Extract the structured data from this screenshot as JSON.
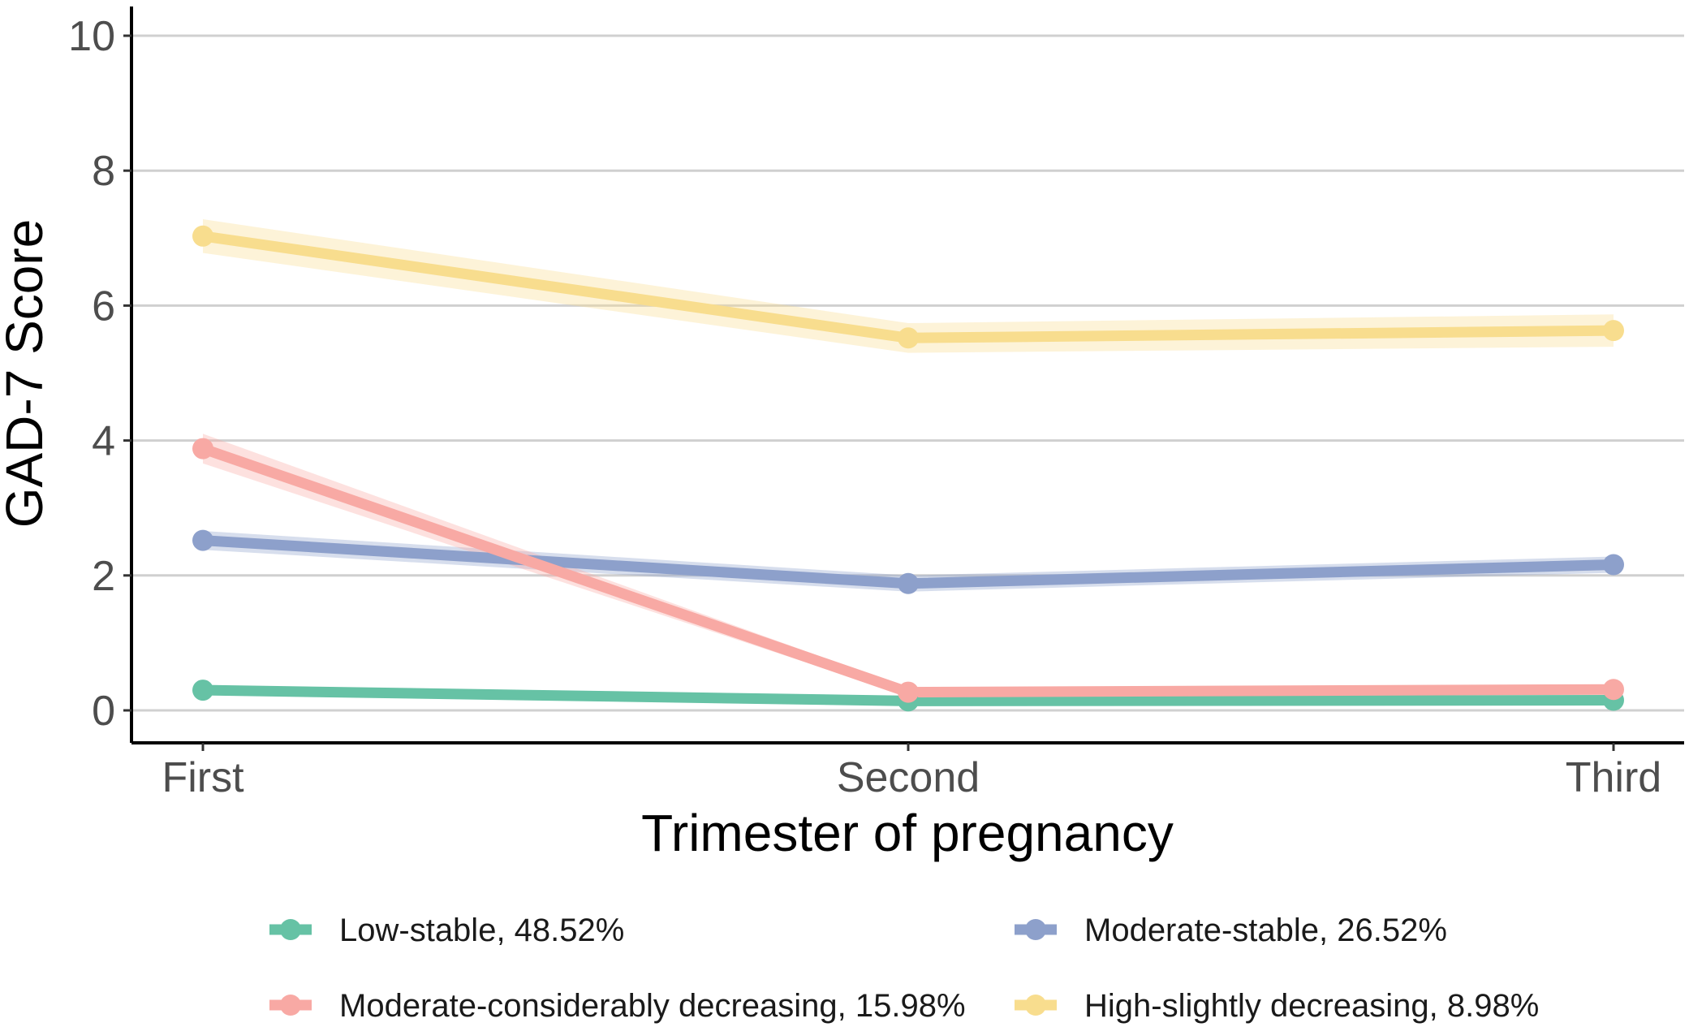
{
  "chart_data": {
    "type": "line",
    "title": "",
    "xlabel": "Trimester of pregnancy",
    "ylabel": "GAD-7 Score",
    "categories": [
      "First",
      "Second",
      "Third"
    ],
    "ylim": [
      -0.5,
      10.5
    ],
    "yticks": [
      0,
      2,
      4,
      6,
      8,
      10
    ],
    "grid": "horizontal major",
    "legend_position": "bottom",
    "series": [
      {
        "name": "Low-stable, 48.52%",
        "color": "#66c2a5",
        "values": [
          0.3,
          0.14,
          0.15
        ],
        "ci": [
          0.05,
          0.04,
          0.04
        ]
      },
      {
        "name": "Moderate-stable, 26.52%",
        "color": "#8da0cb",
        "values": [
          2.52,
          1.88,
          2.16
        ],
        "ci": [
          0.14,
          0.12,
          0.12
        ]
      },
      {
        "name": "Moderate-considerably decreasing, 15.98%",
        "color": "#fc8d62",
        "line_color": "#f8a9a4",
        "values": [
          3.88,
          0.27,
          0.31
        ],
        "ci": [
          0.22,
          0.06,
          0.06
        ]
      },
      {
        "name": "High-slightly decreasing, 8.98%",
        "color": "#ffd92f",
        "line_color": "#f8dd8e",
        "values": [
          7.03,
          5.52,
          5.63
        ],
        "ci": [
          0.25,
          0.22,
          0.24
        ]
      }
    ]
  }
}
